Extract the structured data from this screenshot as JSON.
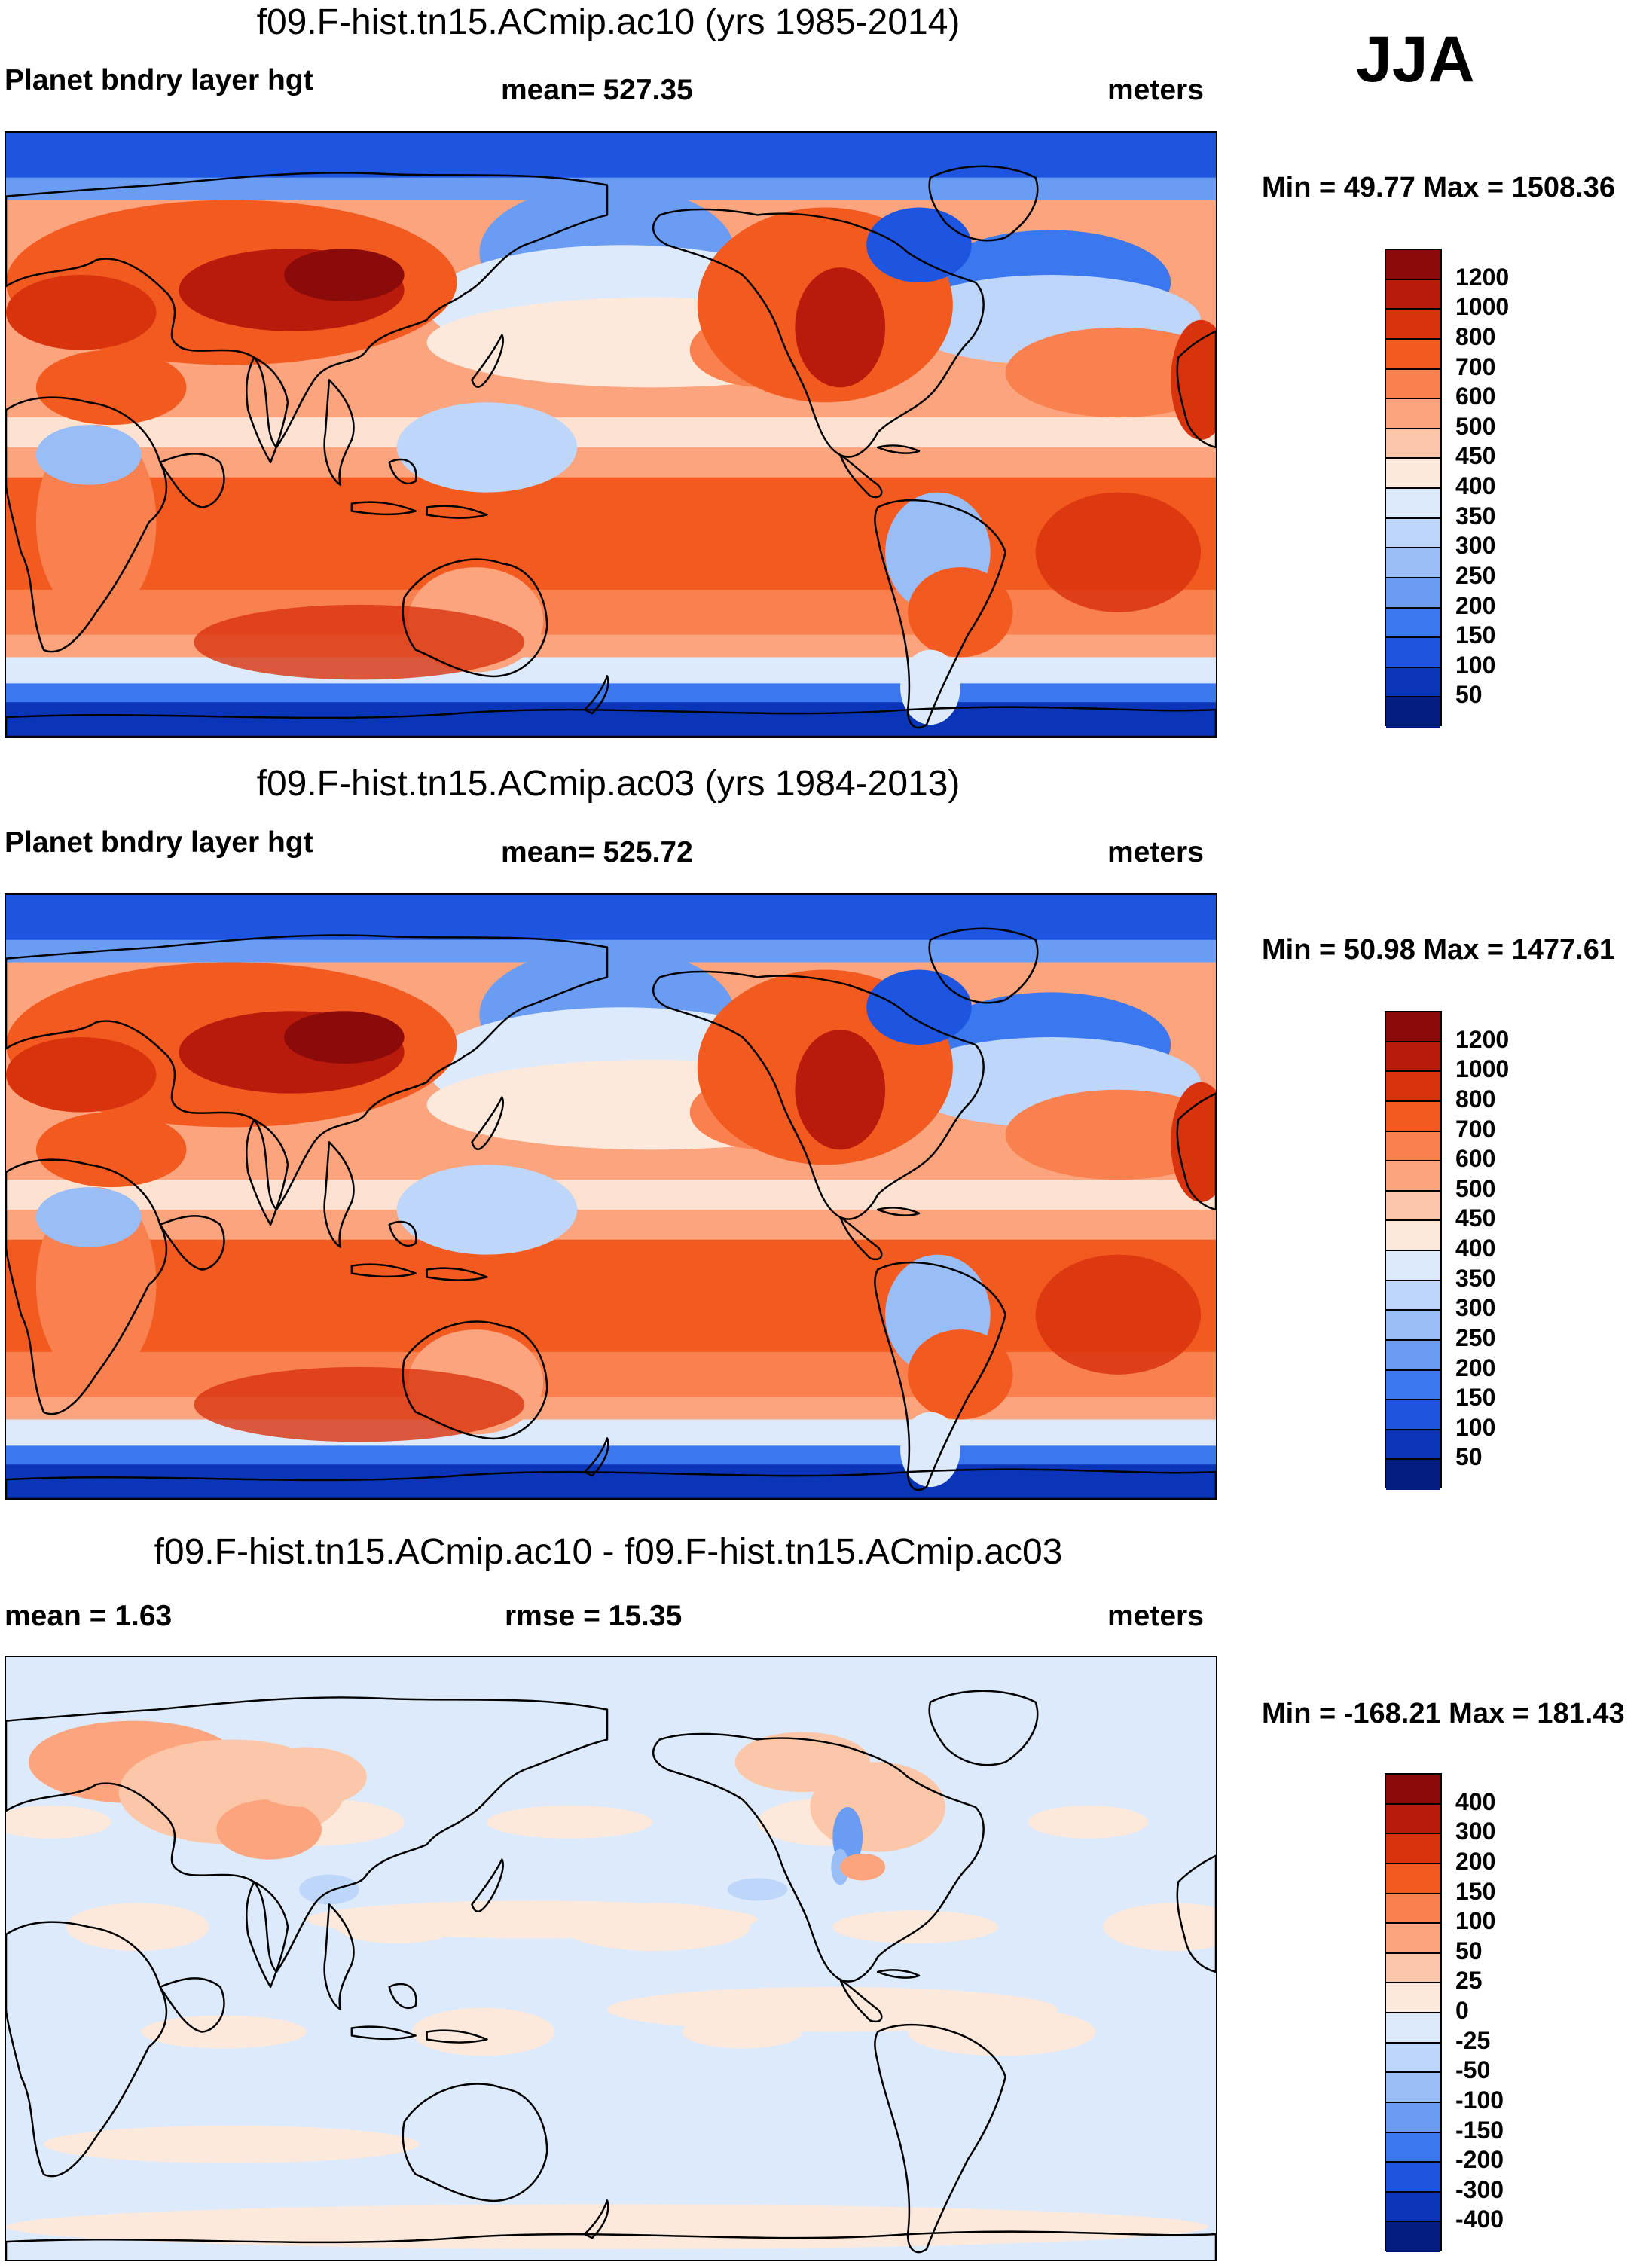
{
  "season": "JJA",
  "panels": [
    {
      "title": "f09.F-hist.tn15.ACmip.ac10 (yrs 1985-2014)",
      "left": "Planet bndry layer hgt",
      "center": "mean= 527.35",
      "right": "meters",
      "minmax": "Min =  49.77 Max = 1508.36",
      "levels": [
        "1200",
        "1000",
        "800",
        "700",
        "600",
        "500",
        "450",
        "400",
        "350",
        "300",
        "250",
        "200",
        "150",
        "100",
        "50"
      ],
      "colors": [
        "#8b0a0a",
        "#b81a0c",
        "#d9330e",
        "#f35a1f",
        "#f9804f",
        "#fba47e",
        "#fcc7a8",
        "#fde9dc",
        "#dceafb",
        "#bdd6fa",
        "#98bdf7",
        "#6a9cf3",
        "#3b78ef",
        "#1d55e0",
        "#0b35b8",
        "#041e80"
      ],
      "map_style": "full"
    },
    {
      "title": "f09.F-hist.tn15.ACmip.ac03 (yrs 1984-2013)",
      "left": "Planet bndry layer hgt",
      "center": "mean= 525.72",
      "right": "meters",
      "minmax": "Min =  50.98 Max = 1477.61",
      "levels": [
        "1200",
        "1000",
        "800",
        "700",
        "600",
        "500",
        "450",
        "400",
        "350",
        "300",
        "250",
        "200",
        "150",
        "100",
        "50"
      ],
      "colors": [
        "#8b0a0a",
        "#b81a0c",
        "#d9330e",
        "#f35a1f",
        "#f9804f",
        "#fba47e",
        "#fcc7a8",
        "#fde9dc",
        "#dceafb",
        "#bdd6fa",
        "#98bdf7",
        "#6a9cf3",
        "#3b78ef",
        "#1d55e0",
        "#0b35b8",
        "#041e80"
      ],
      "map_style": "full"
    },
    {
      "title": "f09.F-hist.tn15.ACmip.ac10 - f09.F-hist.tn15.ACmip.ac03",
      "left": "mean =   1.63",
      "center": "rmse =  15.35",
      "right": "meters",
      "minmax": "Min = -168.21 Max = 181.43",
      "levels": [
        "400",
        "300",
        "200",
        "150",
        "100",
        "50",
        "25",
        "0",
        "-25",
        "-50",
        "-100",
        "-150",
        "-200",
        "-300",
        "-400"
      ],
      "colors": [
        "#8b0a0a",
        "#b81a0c",
        "#d9330e",
        "#f35a1f",
        "#f9804f",
        "#fba47e",
        "#fcc7a8",
        "#fde9dc",
        "#dceafb",
        "#bdd6fa",
        "#98bdf7",
        "#6a9cf3",
        "#3b78ef",
        "#1d55e0",
        "#0b35b8",
        "#041e80"
      ],
      "map_style": "diff"
    }
  ]
}
